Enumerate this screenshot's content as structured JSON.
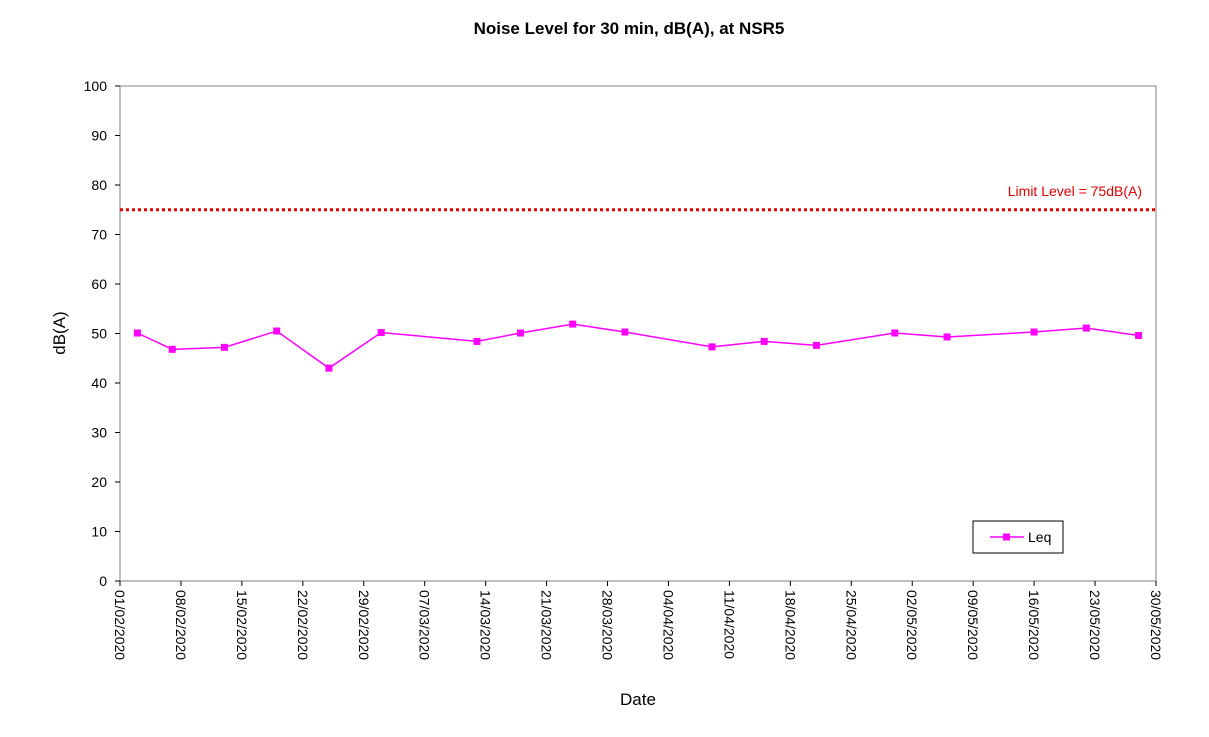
{
  "chart_data": {
    "type": "line",
    "title": "Noise Level for 30 min, dB(A), at NSR5",
    "xlabel": "Date",
    "ylabel": "dB(A)",
    "ylim": [
      0,
      100
    ],
    "y_ticks": [
      0,
      10,
      20,
      30,
      40,
      50,
      60,
      70,
      80,
      90,
      100
    ],
    "xlim": [
      "2020-02-01",
      "2020-05-30"
    ],
    "x_tick_labels": [
      "01/02/2020",
      "08/02/2020",
      "15/02/2020",
      "22/02/2020",
      "29/02/2020",
      "07/03/2020",
      "14/03/2020",
      "21/03/2020",
      "28/03/2020",
      "04/04/2020",
      "11/04/2020",
      "18/04/2020",
      "25/04/2020",
      "02/05/2020",
      "09/05/2020",
      "16/05/2020",
      "23/05/2020",
      "30/05/2020"
    ],
    "grid": false,
    "legend_position": "bottom-right",
    "series": [
      {
        "name": "Leq",
        "color": "#ff00ff",
        "marker": "square",
        "points": [
          {
            "x": "2020-02-03",
            "y": 50.1
          },
          {
            "x": "2020-02-07",
            "y": 46.8
          },
          {
            "x": "2020-02-13",
            "y": 47.2
          },
          {
            "x": "2020-02-19",
            "y": 50.5
          },
          {
            "x": "2020-02-25",
            "y": 43.0
          },
          {
            "x": "2020-03-02",
            "y": 50.2
          },
          {
            "x": "2020-03-13",
            "y": 48.4
          },
          {
            "x": "2020-03-18",
            "y": 50.1
          },
          {
            "x": "2020-03-24",
            "y": 51.9
          },
          {
            "x": "2020-03-30",
            "y": 50.3
          },
          {
            "x": "2020-04-09",
            "y": 47.3
          },
          {
            "x": "2020-04-15",
            "y": 48.4
          },
          {
            "x": "2020-04-21",
            "y": 47.6
          },
          {
            "x": "2020-04-30",
            "y": 50.1
          },
          {
            "x": "2020-05-06",
            "y": 49.3
          },
          {
            "x": "2020-05-16",
            "y": 50.3
          },
          {
            "x": "2020-05-22",
            "y": 51.1
          },
          {
            "x": "2020-05-28",
            "y": 49.6
          }
        ]
      }
    ],
    "limit_line": {
      "value": 75,
      "label": "Limit Level = 75dB(A)",
      "color": "#e00000",
      "style": "dotted"
    }
  }
}
